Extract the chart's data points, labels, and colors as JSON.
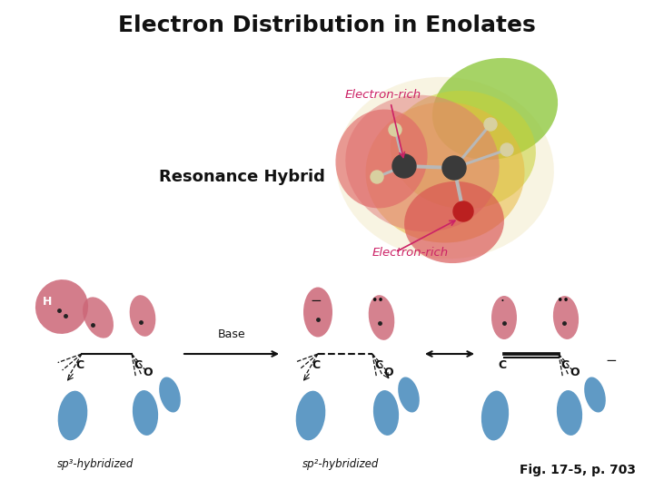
{
  "title": "Electron Distribution in Enolates",
  "title_fontsize": 18,
  "fig_caption": "Fig. 17-5, p. 703",
  "caption_fontsize": 10,
  "background_color": "#ffffff",
  "resonance_hybrid_label": "Resonance Hybrid",
  "electron_rich_top_label": "Electron-rich",
  "electron_rich_bot_label": "Electron-rich",
  "sp3_label": "sp³-hybridized",
  "sp2_label": "sp²-hybridized",
  "base_label": "Base",
  "pink_color": "#cc6677",
  "blue_color": "#4488bb",
  "dark_carbon": "#404040",
  "red_oxygen": "#cc2020",
  "cream_H": "#d8d0a0",
  "magenta_label": "#cc2266"
}
